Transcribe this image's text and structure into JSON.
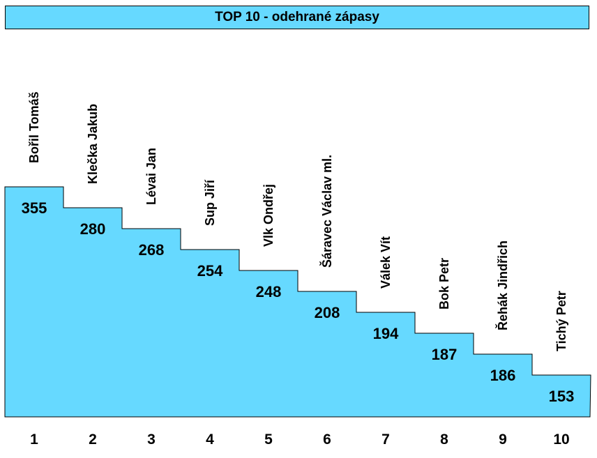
{
  "chart_data": {
    "type": "bar",
    "title": "TOP 10 - odehrané zápasy",
    "ranks": [
      "1",
      "2",
      "3",
      "4",
      "5",
      "6",
      "7",
      "8",
      "9",
      "10"
    ],
    "categories": [
      "Bořil Tomáš",
      "Klečka Jakub",
      "Lévai Jan",
      "Sup Jiří",
      "Vlk Ondřej",
      "Šáravec Václav ml.",
      "Válek Vít",
      "Bok Petr",
      "Řehák Jindřich",
      "Tichý Petr"
    ],
    "values": [
      355,
      280,
      268,
      254,
      248,
      208,
      194,
      187,
      186,
      153
    ],
    "fill_color": "#66d9ff",
    "border_color": "#000000"
  }
}
